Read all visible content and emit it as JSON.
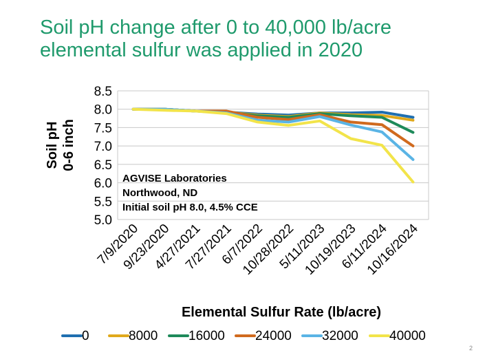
{
  "slide": {
    "title_line1": "Soil pH change after 0 to 40,000 lb/acre",
    "title_line2": "elemental sulfur was applied in 2020",
    "page_number": "2"
  },
  "chart_data": {
    "type": "line",
    "categories": [
      "7/9/2020",
      "9/23/2020",
      "4/27/2021",
      "7/27/2021",
      "6/7/2022",
      "10/28/2022",
      "5/11/2023",
      "10/19/2023",
      "6/11/2024",
      "10/16/2024"
    ],
    "ylabel_line1": "Soil pH",
    "ylabel_line2": "0-6 inch",
    "xlabel": "Elemental Sulfur Rate (lb/acre)",
    "ylim": [
      5.0,
      8.5
    ],
    "yticks": [
      "8.5",
      "8.0",
      "7.5",
      "7.0",
      "6.5",
      "6.0",
      "5.5",
      "5.0"
    ],
    "grid": "horizontal",
    "legend_position": "bottom",
    "annotation": [
      "AGVISE Laboratories",
      "Northwood, ND",
      "Initial soil pH 8.0, 4.5% CCE"
    ],
    "series": [
      {
        "name": "0",
        "color": "#1f6fb0",
        "values": [
          8.0,
          8.0,
          7.95,
          7.92,
          7.87,
          7.84,
          7.9,
          7.9,
          7.92,
          7.78
        ]
      },
      {
        "name": "8000",
        "color": "#e0a91c",
        "values": [
          8.0,
          8.0,
          7.95,
          7.92,
          7.84,
          7.8,
          7.9,
          7.85,
          7.83,
          7.7
        ]
      },
      {
        "name": "16000",
        "color": "#1e8a5a",
        "values": [
          8.0,
          8.0,
          7.95,
          7.92,
          7.82,
          7.78,
          7.88,
          7.82,
          7.78,
          7.37
        ]
      },
      {
        "name": "24000",
        "color": "#d06a1e",
        "values": [
          8.0,
          8.0,
          7.95,
          7.95,
          7.78,
          7.72,
          7.85,
          7.65,
          7.58,
          7.0
        ]
      },
      {
        "name": "32000",
        "color": "#5ab4e5",
        "values": [
          8.0,
          8.0,
          7.95,
          7.9,
          7.7,
          7.65,
          7.8,
          7.57,
          7.38,
          6.63
        ]
      },
      {
        "name": "40000",
        "color": "#f2e44a",
        "values": [
          8.0,
          7.97,
          7.95,
          7.88,
          7.65,
          7.56,
          7.68,
          7.2,
          7.02,
          6.02
        ]
      }
    ]
  }
}
